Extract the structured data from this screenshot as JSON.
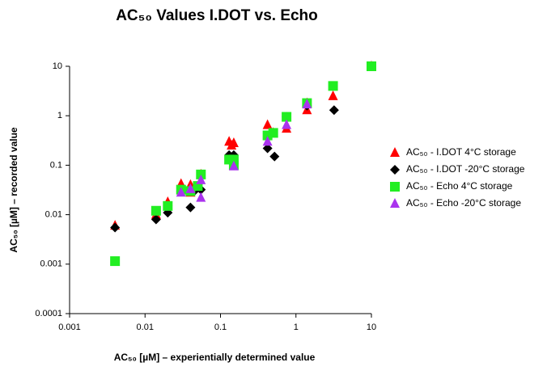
{
  "chart_data": {
    "type": "scatter",
    "title": "AC₅₀ Values I.DOT vs. Echo",
    "x_label": "AC₅₀  [µM] – experientially determined value",
    "y_label": "AC₅₀  [µM] – recorded value",
    "xscale": "log",
    "yscale": "log",
    "xlim": [
      0.001,
      10
    ],
    "ylim": [
      0.0001,
      10
    ],
    "xticks": [
      0.001,
      0.01,
      0.1,
      1,
      10
    ],
    "yticks": [
      0.0001,
      0.001,
      0.01,
      0.1,
      1,
      10
    ],
    "series": [
      {
        "name": "AC₅₀ - I.DOT 4°C storage",
        "color": "#ff0000",
        "marker": "triangle",
        "x": [
          0.004,
          0.014,
          0.02,
          0.03,
          0.04,
          0.04,
          0.05,
          0.055,
          0.13,
          0.15,
          0.14,
          0.42,
          0.5,
          0.75,
          1.4,
          1.4,
          3.1,
          10
        ],
        "values": [
          0.006,
          0.01,
          0.018,
          0.042,
          0.028,
          0.04,
          0.035,
          0.065,
          0.3,
          0.28,
          0.25,
          0.65,
          0.45,
          0.55,
          1.3,
          1.8,
          2.5,
          10
        ]
      },
      {
        "name": "AC₅₀ - I.DOT -20°C storage",
        "color": "#000000",
        "marker": "diamond",
        "x": [
          0.004,
          0.014,
          0.02,
          0.03,
          0.04,
          0.045,
          0.055,
          0.13,
          0.15,
          0.42,
          0.52,
          0.75,
          1.4,
          3.2,
          10
        ],
        "values": [
          0.0055,
          0.008,
          0.011,
          0.03,
          0.014,
          0.03,
          0.032,
          0.16,
          0.16,
          0.22,
          0.15,
          0.95,
          1.6,
          1.3,
          10
        ]
      },
      {
        "name": "AC₅₀ - Echo 4°C storage",
        "color": "#22ee22",
        "marker": "square",
        "x": [
          0.004,
          0.014,
          0.02,
          0.03,
          0.04,
          0.05,
          0.055,
          0.13,
          0.15,
          0.15,
          0.42,
          0.5,
          0.75,
          1.4,
          3.1,
          10
        ],
        "values": [
          0.00115,
          0.012,
          0.015,
          0.032,
          0.03,
          0.038,
          0.065,
          0.13,
          0.1,
          0.13,
          0.4,
          0.45,
          0.95,
          1.8,
          4,
          10
        ]
      },
      {
        "name": "AC₅₀ - Echo -20°C storage",
        "color": "#aa33ee",
        "marker": "triangle",
        "x": [
          0.03,
          0.04,
          0.055,
          0.055,
          0.15,
          0.42,
          0.75,
          1.4
        ],
        "values": [
          0.028,
          0.033,
          0.022,
          0.05,
          0.095,
          0.3,
          0.65,
          1.7
        ]
      }
    ]
  }
}
